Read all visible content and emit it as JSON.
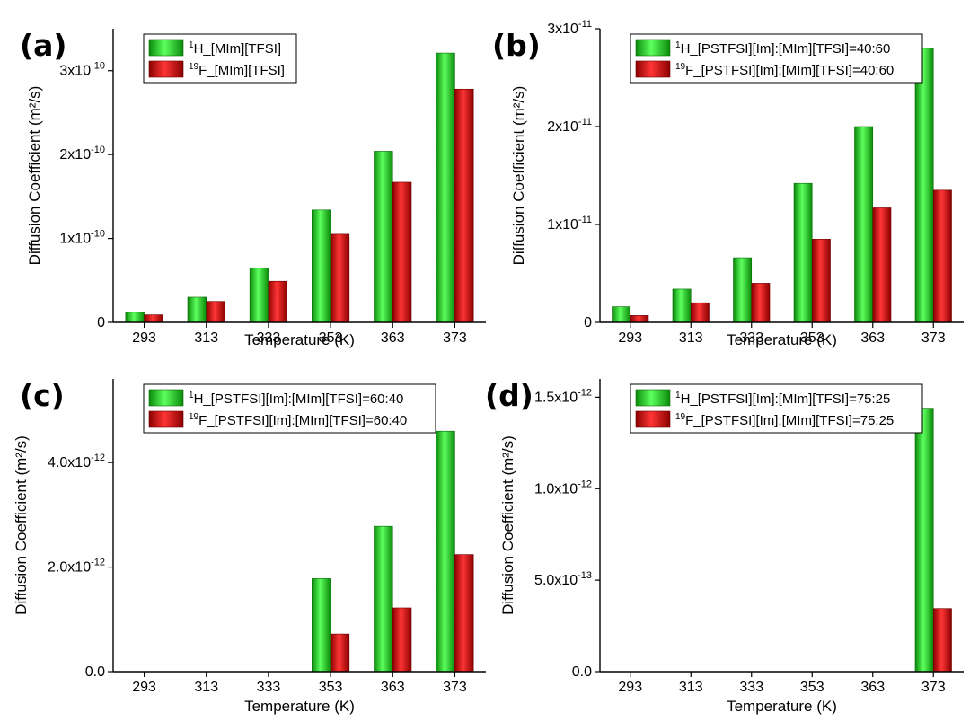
{
  "chart_data": [
    {
      "panel": "(a)",
      "type": "bar",
      "xlabel": "Temperature (K)",
      "ylabel": "Diffusion Coefficient (m²/s)",
      "categories": [
        "293",
        "313",
        "333",
        "353",
        "363",
        "373"
      ],
      "exponent": -10,
      "ylim": [
        0,
        3.5
      ],
      "yticks": [
        0,
        1,
        2,
        3
      ],
      "ytick_labels": [
        "0",
        "1x10",
        "2x10",
        "3x10"
      ],
      "ytick_sups": [
        "",
        "-10",
        "-10",
        "-10"
      ],
      "grid": false,
      "legend_position": "top-left",
      "series": [
        {
          "name": "H_[MIm][TFSI]",
          "iso": "1",
          "color": "#22dd22",
          "values": [
            0.12,
            0.3,
            0.65,
            1.34,
            2.04,
            3.21
          ]
        },
        {
          "name": "F_[MIm][TFSI]",
          "iso": "19",
          "color": "#ee1111",
          "values": [
            0.09,
            0.25,
            0.49,
            1.05,
            1.67,
            2.78
          ]
        }
      ]
    },
    {
      "panel": "(b)",
      "type": "bar",
      "xlabel": "Temperature (K)",
      "ylabel": "Diffusion Coefficient (m²/s)",
      "categories": [
        "293",
        "313",
        "333",
        "353",
        "363",
        "373"
      ],
      "exponent": -11,
      "ylim": [
        0,
        3.0
      ],
      "yticks": [
        0,
        1,
        2,
        3
      ],
      "ytick_labels": [
        "0",
        "1x10",
        "2x10",
        "3x10"
      ],
      "ytick_sups": [
        "",
        "-11",
        "-11",
        "-11"
      ],
      "grid": false,
      "legend_position": "top-left",
      "series": [
        {
          "name": "H_[PSTFSI][Im]:[MIm][TFSI]=40:60",
          "iso": "1",
          "color": "#22dd22",
          "values": [
            0.16,
            0.34,
            0.66,
            1.42,
            2.0,
            2.8
          ]
        },
        {
          "name": "F_[PSTFSI][Im]:[MIm][TFSI]=40:60",
          "iso": "19",
          "color": "#ee1111",
          "values": [
            0.07,
            0.2,
            0.4,
            0.85,
            1.17,
            1.35
          ]
        }
      ]
    },
    {
      "panel": "(c)",
      "type": "bar",
      "xlabel": "Temperature (K)",
      "ylabel": "Diffusion Coefficient (m²/s)",
      "categories": [
        "293",
        "313",
        "333",
        "353",
        "363",
        "373"
      ],
      "exponent": -12,
      "ylim": [
        0,
        5.6
      ],
      "yticks": [
        0,
        2,
        4
      ],
      "ytick_labels": [
        "0.0",
        "2.0x10",
        "4.0x10"
      ],
      "ytick_sups": [
        "",
        "-12",
        "-12"
      ],
      "grid": false,
      "legend_position": "top-left",
      "series": [
        {
          "name": "H_[PSTFSI][Im]:[MIm][TFSI]=60:40",
          "iso": "1",
          "color": "#22dd22",
          "values": [
            0,
            0,
            0,
            1.78,
            2.78,
            4.6
          ]
        },
        {
          "name": "F_[PSTFSI][Im]:[MIm][TFSI]=60:40",
          "iso": "19",
          "color": "#ee1111",
          "values": [
            0,
            0,
            0,
            0.72,
            1.22,
            2.24
          ]
        }
      ]
    },
    {
      "panel": "(d)",
      "type": "bar",
      "xlabel": "Temperature (K)",
      "ylabel": "Diffusion Coefficient (m²/s)",
      "categories": [
        "293",
        "313",
        "333",
        "353",
        "363",
        "373"
      ],
      "exponent": -13,
      "ylim": [
        0,
        16.0
      ],
      "yticks": [
        0,
        5,
        10,
        15
      ],
      "ytick_labels": [
        "0.0",
        "5.0x10",
        "1.0x10",
        "1.5x10"
      ],
      "ytick_sups": [
        "",
        "-13",
        "-12",
        "-12"
      ],
      "grid": false,
      "legend_position": "top-left",
      "series": [
        {
          "name": "H_[PSTFSI][Im]:[MIm][TFSI]=75:25",
          "iso": "1",
          "color": "#22dd22",
          "values": [
            0,
            0,
            0,
            0,
            0,
            14.4
          ]
        },
        {
          "name": "F_[PSTFSI][Im]:[MIm][TFSI]=75:25",
          "iso": "19",
          "color": "#ee1111",
          "values": [
            0,
            0,
            0,
            0,
            0,
            3.45
          ]
        }
      ]
    }
  ]
}
